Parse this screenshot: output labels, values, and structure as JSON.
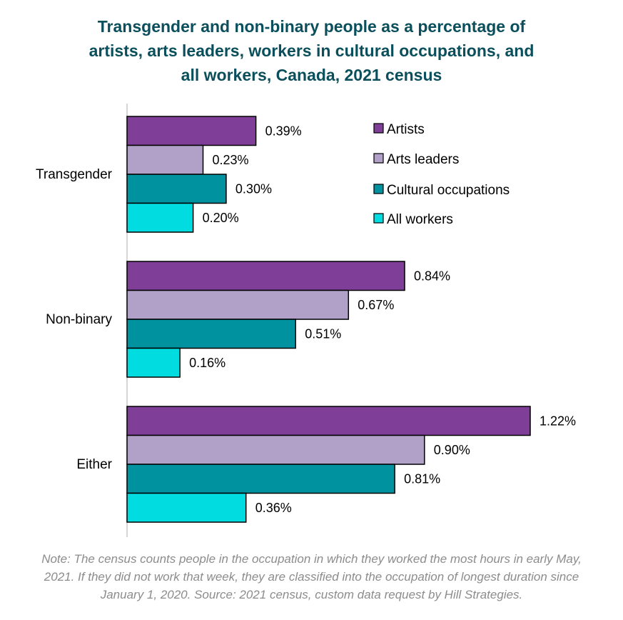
{
  "title_lines": [
    "Transgender and non-binary people as a percentage of",
    "artists, arts leaders, workers in cultural occupations, and",
    "all workers, Canada, 2021 census"
  ],
  "note_lines": [
    "Note: The census counts people in the occupation in which they worked the most hours in early May,",
    "2021. If they did not work that week, they are classified into the occupation of longest duration since",
    "January 1, 2020. Source: 2021 census, custom data request by Hill Strategies."
  ],
  "chart_data": {
    "type": "bar",
    "orientation": "horizontal",
    "categories": [
      "Transgender",
      "Non-binary",
      "Either"
    ],
    "series": [
      {
        "name": "Artists",
        "values": [
          0.39,
          0.84,
          1.22
        ],
        "labels": [
          "0.39%",
          "0.84%",
          "1.22%"
        ],
        "color": "#7f3f98"
      },
      {
        "name": "Arts leaders",
        "values": [
          0.23,
          0.67,
          0.9
        ],
        "labels": [
          "0.23%",
          "0.67%",
          "0.90%"
        ],
        "color": "#b1a0c7"
      },
      {
        "name": "Cultural occupations",
        "values": [
          0.3,
          0.51,
          0.81
        ],
        "labels": [
          "0.30%",
          "0.51%",
          "0.81%"
        ],
        "color": "#00929f"
      },
      {
        "name": "All workers",
        "values": [
          0.2,
          0.16,
          0.36
        ],
        "labels": [
          "0.20%",
          "0.16%",
          "0.36%"
        ],
        "color": "#00dce0"
      }
    ],
    "xlim": [
      0,
      1.22
    ],
    "grid": false,
    "legend": "top-right",
    "title": "Transgender and non-binary people as a percentage of artists, arts leaders, workers in cultural occupations, and all workers, Canada, 2021 census",
    "xlabel": "",
    "ylabel": ""
  }
}
